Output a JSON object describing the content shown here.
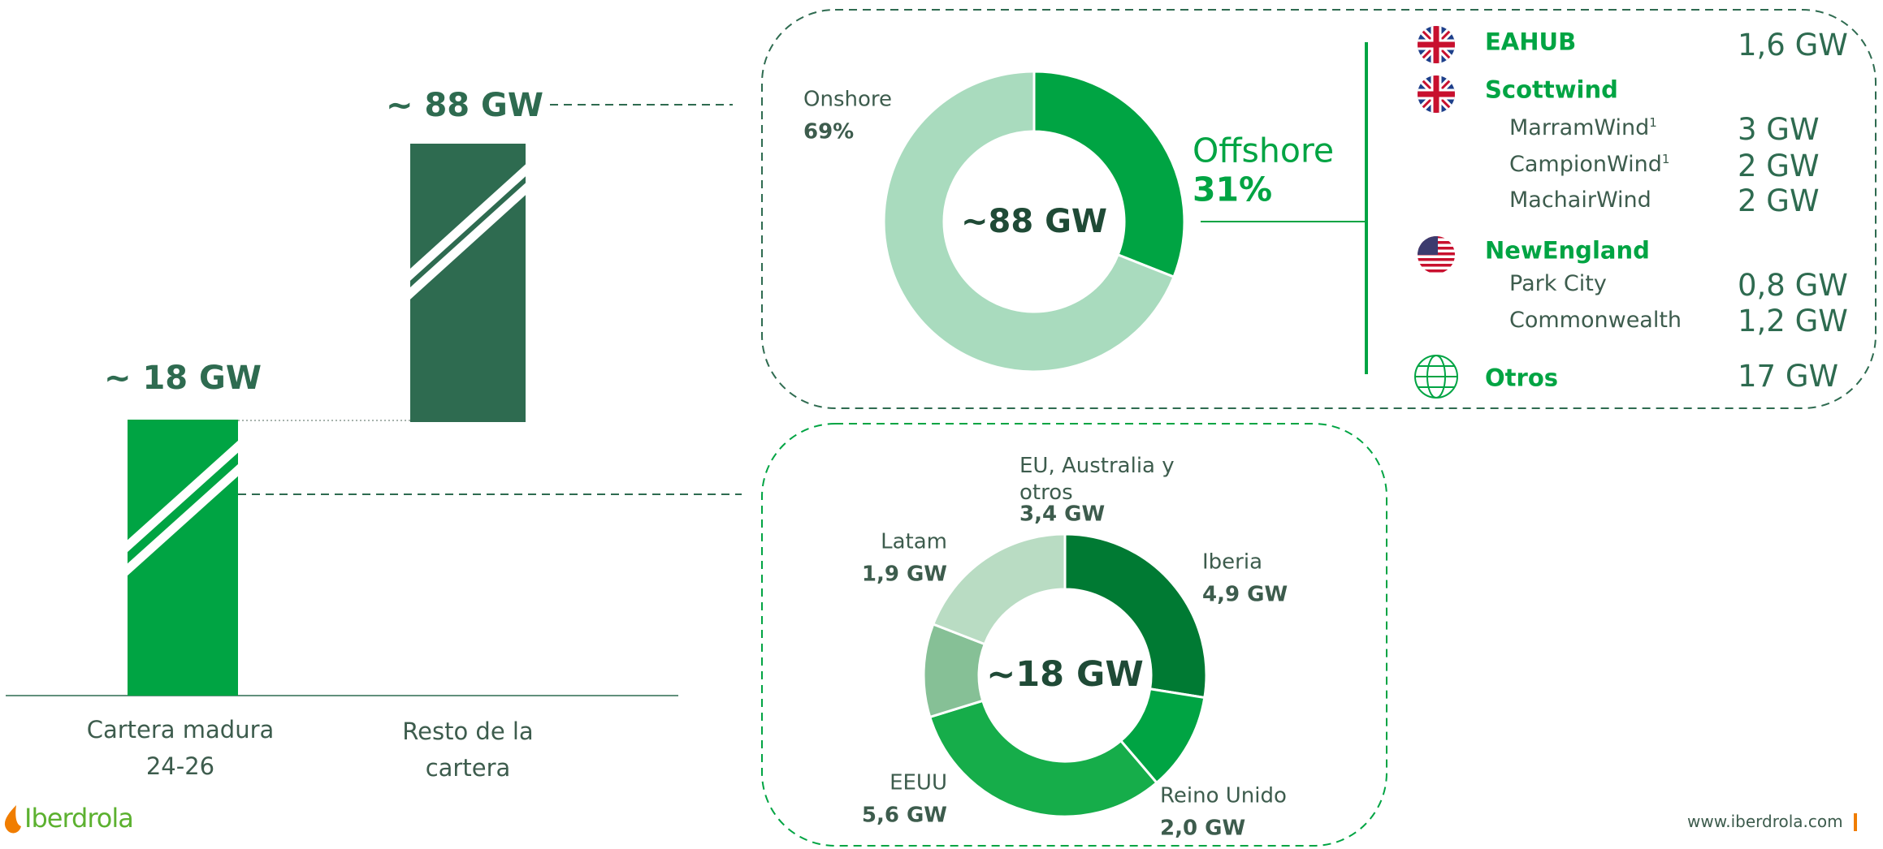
{
  "summary": {
    "items": [
      {
        "label": "~ 18 GW",
        "category": "Cartera madura 24-26"
      },
      {
        "label": "~ 88 GW",
        "category": "Resto de la cartera"
      }
    ]
  },
  "chart_data": [
    {
      "type": "donut",
      "center_label": "~88 GW",
      "categories": [
        "Offshore",
        "Onshore"
      ],
      "values": [
        31,
        69
      ],
      "value_labels": [
        "31%",
        "69%"
      ],
      "colors": [
        "#00a443",
        "#a9dbbe"
      ]
    },
    {
      "type": "donut",
      "center_label": "~18 GW",
      "categories": [
        "Iberia",
        "Reino Unido",
        "EEUU",
        "Latam",
        "EU, Australia y otros"
      ],
      "values": [
        4.9,
        2.0,
        5.6,
        1.9,
        3.4
      ],
      "value_labels": [
        "4,9 GW",
        "2,0 GW",
        "5,6 GW",
        "1,9 GW",
        "3,4 GW"
      ],
      "colors": [
        "#007a33",
        "#00a443",
        "#16ad4a",
        "#86c096",
        "#b9dcc3"
      ]
    }
  ],
  "offshore_pipeline": [
    {
      "name": "EAHUB",
      "flag": "uk",
      "value": "1,6 GW"
    },
    {
      "name": "Scottwind",
      "flag": "uk",
      "projects": [
        {
          "name": "MarramWind",
          "note": "1",
          "value": "3 GW"
        },
        {
          "name": "CampionWind",
          "note": "1",
          "value": "2 GW"
        },
        {
          "name": "MachairWind",
          "value": "2 GW"
        }
      ]
    },
    {
      "name": "NewEngland",
      "flag": "us",
      "projects": [
        {
          "name": "Park City",
          "value": "0,8 GW"
        },
        {
          "name": "Commonwealth",
          "value": "1,2 GW"
        }
      ]
    },
    {
      "name": "Otros",
      "flag": "globe",
      "value": "17 GW"
    }
  ],
  "footer": {
    "logo": "Iberdrola",
    "url": "www.iberdrola.com"
  }
}
